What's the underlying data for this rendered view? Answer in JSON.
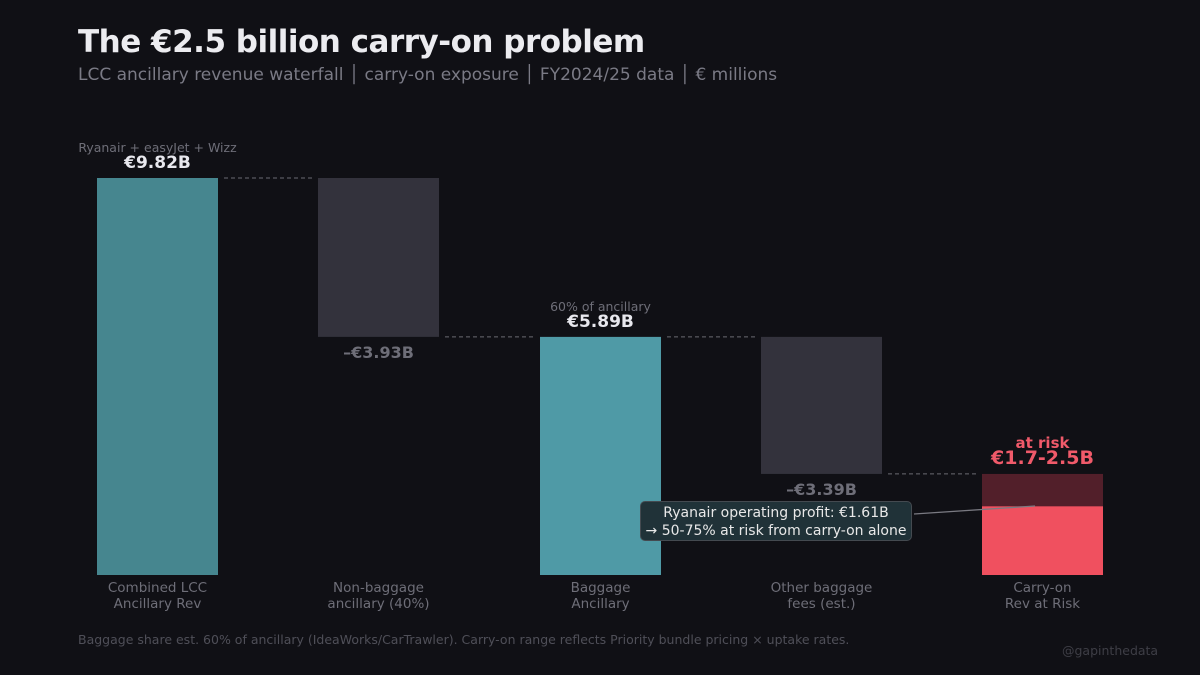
{
  "title": "The €2.5 billion carry-on problem",
  "subtitle": "LCC ancillary revenue waterfall  │  carry-on exposure  │  FY2024/25 data  │  € millions",
  "footer": "Baggage share est. 60% of ancillary (IdeaWorks/CarTrawler). Carry-on range reflects Priority bundle pricing × uptake rates.",
  "credit": "@gapinthedata",
  "chart_data": {
    "type": "bar",
    "subtype": "waterfall",
    "categories": [
      "Combined LCC\nAncillary Rev",
      "Non-baggage\nancillary (40%)",
      "Baggage\nAncillary",
      "Other baggage\nfees (est.)",
      "Carry-on\nRev at Risk"
    ],
    "bars": [
      {
        "kind": "total",
        "start": 0,
        "end": 9.82,
        "label": "€9.82B",
        "note": "Ryanair + easyJet + Wizz",
        "color": "#46868f"
      },
      {
        "kind": "decrease",
        "start": 9.82,
        "end": 5.89,
        "label": "–€3.93B",
        "color": "#33323c"
      },
      {
        "kind": "total",
        "start": 0,
        "end": 5.89,
        "label": "€5.89B",
        "note": "60% of ancillary",
        "color": "#4f9aa6"
      },
      {
        "kind": "decrease",
        "start": 5.89,
        "end": 2.5,
        "label": "–€3.39B",
        "color": "#33323c"
      },
      {
        "kind": "range",
        "low": 1.7,
        "high": 2.5,
        "label": "€1.7-2.5B",
        "note": "at risk",
        "color": "#f0505f",
        "range_color": "#521f2a"
      }
    ],
    "ylim": [
      0,
      9.82
    ],
    "annotation": {
      "lines": [
        "Ryanair operating profit: €1.61B",
        "→ 50-75% at risk from carry-on alone"
      ]
    },
    "colors": {
      "label": "#e8e8ee",
      "decrease_label": "#6e6e78",
      "risk": "#f05a6a",
      "axis_label": "#6e6e78"
    }
  }
}
